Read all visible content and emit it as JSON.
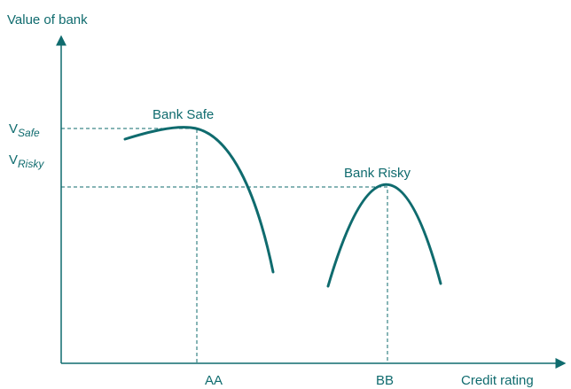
{
  "axes": {
    "y_label": "Value of bank",
    "x_label": "Credit rating"
  },
  "curves": [
    {
      "label": "Bank Safe"
    },
    {
      "label": "Bank Risky"
    }
  ],
  "x_ticks": [
    "AA",
    "BB"
  ],
  "y_ticks": [
    {
      "main": "V",
      "sub": "Safe"
    },
    {
      "main": "V",
      "sub": "Risky"
    }
  ]
}
